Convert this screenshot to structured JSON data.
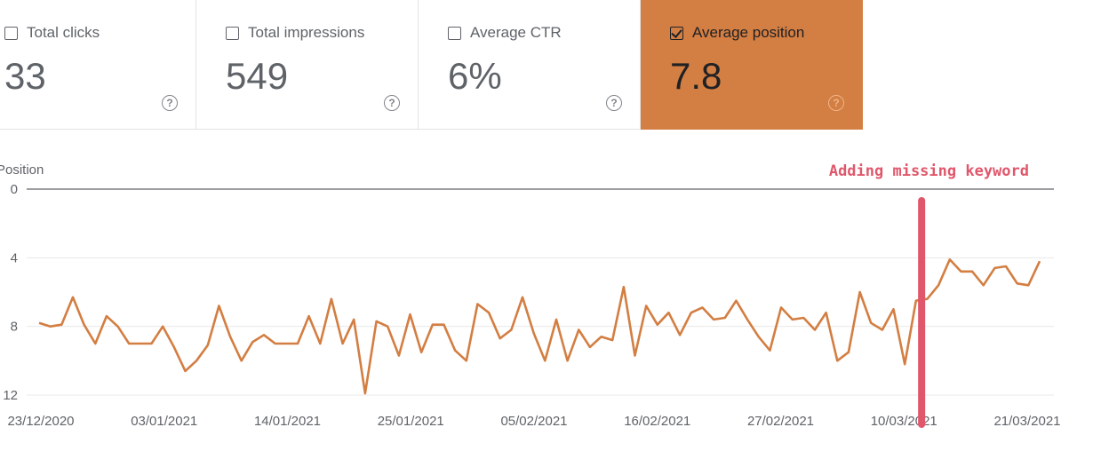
{
  "cards": [
    {
      "label": "Total clicks",
      "value": "33",
      "checked": false
    },
    {
      "label": "Total impressions",
      "value": "549",
      "checked": false
    },
    {
      "label": "Average CTR",
      "value": "6%",
      "checked": false
    },
    {
      "label": "Average position",
      "value": "7.8",
      "checked": true
    }
  ],
  "help_glyph": "?",
  "colors": {
    "accent": "#d37e42",
    "line": "#d37e42",
    "annotation": "#e0576b"
  },
  "chart_data": {
    "type": "line",
    "ylabel": "Position",
    "y_inverted": true,
    "ylim": [
      0,
      12
    ],
    "yticks": [
      0,
      4,
      8,
      12
    ],
    "grid": true,
    "xtick_labels": [
      "23/12/2020",
      "03/01/2021",
      "14/01/2021",
      "25/01/2021",
      "05/02/2021",
      "16/02/2021",
      "27/02/2021",
      "10/03/2021",
      "21/03/2021"
    ],
    "series": [
      {
        "values": [
          7.8,
          8.0,
          7.9,
          6.3,
          7.9,
          9.0,
          7.4,
          8.0,
          9.0,
          9.0,
          9.0,
          8.0,
          9.2,
          10.6,
          10.0,
          9.1,
          6.8,
          8.6,
          10.0,
          8.9,
          8.5,
          9.0,
          9.0,
          9.0,
          7.4,
          9.0,
          6.4,
          9.0,
          7.6,
          11.9,
          7.7,
          8.0,
          9.7,
          7.3,
          9.5,
          7.9,
          7.9,
          9.4,
          10.0,
          6.7,
          7.2,
          8.7,
          8.2,
          6.3,
          8.4,
          10.0,
          7.6,
          10.0,
          8.2,
          9.2,
          8.6,
          8.8,
          5.7,
          9.7,
          6.8,
          7.9,
          7.2,
          8.5,
          7.2,
          6.9,
          7.6,
          7.5,
          6.5,
          7.6,
          8.6,
          9.4,
          6.9,
          7.6,
          7.5,
          8.2,
          7.2,
          10.0,
          9.5,
          6.0,
          7.8,
          8.2,
          7.0,
          10.2,
          6.5,
          6.4,
          5.6,
          4.1,
          4.8,
          4.8,
          5.6,
          4.6,
          4.5,
          5.5,
          5.6,
          4.2
        ]
      }
    ],
    "annotation": {
      "text": "Adding missing keyword",
      "x_index": 78
    }
  }
}
